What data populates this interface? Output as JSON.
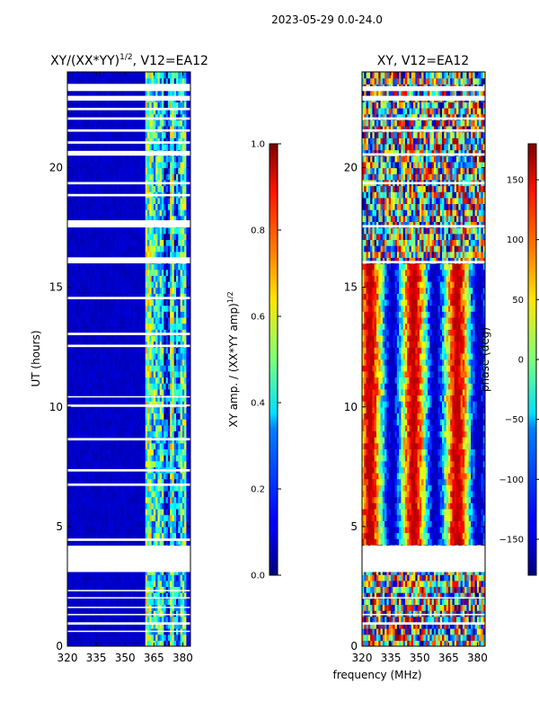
{
  "figure": {
    "suptitle": "2023-05-29 0.0-24.0",
    "shared_xlabel": "frequency (MHz)"
  },
  "chart_data": [
    {
      "type": "heatmap",
      "title_text": "XY/(XX*YY)",
      "title_superscript": "1/2",
      "title_suffix": ", V12=EA12",
      "xlabel": "",
      "ylabel": "UT (hours)",
      "xlim": [
        320,
        384
      ],
      "ylim": [
        0,
        24
      ],
      "xticks": [
        320,
        335,
        350,
        365,
        380
      ],
      "yticks": [
        0,
        5,
        10,
        15,
        20
      ],
      "colorbar": {
        "label_text": "XY amp. / (XX*YY amp)",
        "label_superscript": "1/2",
        "range": [
          0.0,
          1.0
        ],
        "ticks": [
          "0.0",
          "0.2",
          "0.4",
          "0.6",
          "0.8",
          "1.0"
        ],
        "colormap": "jet"
      },
      "description_bands": [
        {
          "x_range": [
            320,
            361
          ],
          "level": 0.05
        },
        {
          "x_range": [
            361,
            364
          ],
          "level": 0.45
        },
        {
          "x_range": [
            364,
            370
          ],
          "level": 0.35
        },
        {
          "x_range": [
            370,
            373
          ],
          "level": 0.12
        },
        {
          "x_range": [
            373,
            376
          ],
          "level": 0.45
        },
        {
          "x_range": [
            376,
            379
          ],
          "level": 0.2
        },
        {
          "x_range": [
            379,
            382
          ],
          "level": 0.4
        },
        {
          "x_range": [
            382,
            384
          ],
          "level": 0.1
        }
      ],
      "flagged_hours": [
        [
          3.1,
          4.2
        ],
        [
          0.9,
          1.0
        ],
        [
          0.6,
          0.65
        ],
        [
          1.3,
          1.35
        ],
        [
          1.6,
          1.65
        ],
        [
          2.0,
          2.05
        ],
        [
          2.3,
          2.35
        ],
        [
          4.4,
          4.5
        ],
        [
          6.7,
          6.8
        ],
        [
          7.3,
          7.4
        ],
        [
          8.6,
          8.7
        ],
        [
          10.0,
          10.1
        ],
        [
          10.4,
          10.45
        ],
        [
          12.5,
          12.6
        ],
        [
          13.0,
          13.1
        ],
        [
          14.5,
          14.6
        ],
        [
          16.0,
          16.25
        ],
        [
          17.5,
          17.8
        ],
        [
          18.8,
          18.9
        ],
        [
          19.3,
          19.4
        ],
        [
          20.5,
          20.7
        ],
        [
          21.0,
          21.1
        ],
        [
          21.5,
          21.6
        ],
        [
          22.0,
          22.1
        ],
        [
          22.4,
          22.5
        ],
        [
          22.8,
          23.0
        ],
        [
          23.2,
          23.5
        ]
      ]
    },
    {
      "type": "heatmap",
      "title_text": "XY, V12=EA12",
      "xlabel": "",
      "ylabel": "",
      "xlim": [
        320,
        384
      ],
      "ylim": [
        0,
        24
      ],
      "xticks": [
        320,
        335,
        350,
        365,
        380
      ],
      "yticks": [
        0,
        5,
        10,
        15,
        20
      ],
      "colorbar": {
        "label_text": "phase (deg)",
        "range": [
          -180,
          180
        ],
        "ticks": [
          "150",
          "100",
          "50",
          "0",
          "−50",
          "−100",
          "−150"
        ],
        "tick_values": [
          150,
          100,
          50,
          0,
          -50,
          -100,
          -150
        ],
        "colormap": "jet"
      },
      "flagged_hours": [
        [
          3.1,
          4.2
        ],
        [
          0.9,
          1.0
        ],
        [
          1.3,
          1.35
        ],
        [
          2.0,
          2.05
        ],
        [
          16.0,
          16.1
        ],
        [
          17.5,
          17.6
        ],
        [
          19.3,
          19.4
        ],
        [
          20.5,
          20.6
        ],
        [
          21.5,
          21.6
        ],
        [
          22.0,
          22.1
        ],
        [
          22.8,
          23.0
        ],
        [
          23.2,
          23.4
        ]
      ]
    }
  ]
}
